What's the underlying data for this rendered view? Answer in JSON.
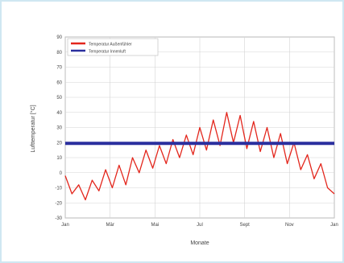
{
  "chart_data": {
    "type": "line",
    "xlabel": "Monate",
    "ylabel": "Lufttemperatur [°C]",
    "x_ticks": [
      "Jan",
      "Mär",
      "Mai",
      "Jul",
      "Sept",
      "Nov",
      "Jan"
    ],
    "y_ticks": [
      90,
      80,
      70,
      60,
      50,
      40,
      30,
      20,
      10,
      0,
      -10,
      -20,
      -30
    ],
    "ylim": [
      -30,
      90
    ],
    "grid": true,
    "legend": "top-left",
    "series": [
      {
        "name": "Temperatur Außenfühler",
        "color": "#e3261c",
        "x": [
          0,
          0.3,
          0.6,
          0.9,
          1.2,
          1.5,
          1.8,
          2.1,
          2.4,
          2.7,
          3.0,
          3.3,
          3.6,
          3.9,
          4.2,
          4.5,
          4.8,
          5.1,
          5.4,
          5.7,
          6.0,
          6.3,
          6.6,
          6.9,
          7.2,
          7.5,
          7.8,
          8.1,
          8.4,
          8.7,
          9.0,
          9.3,
          9.6,
          9.9,
          10.2,
          10.5,
          10.8,
          11.1,
          11.4,
          11.7,
          12.0
        ],
        "values": [
          -2,
          -14,
          -8,
          -18,
          -5,
          -12,
          2,
          -10,
          5,
          -8,
          10,
          0,
          15,
          3,
          18,
          6,
          22,
          10,
          25,
          12,
          30,
          15,
          35,
          18,
          40,
          20,
          38,
          16,
          34,
          14,
          30,
          10,
          26,
          6,
          20,
          2,
          12,
          -4,
          6,
          -10,
          -14
        ]
      },
      {
        "name": "Temperatur Innenluft",
        "color": "#2a2f9e",
        "x": [
          0,
          12
        ],
        "values": [
          19.5,
          19.5
        ]
      }
    ]
  }
}
